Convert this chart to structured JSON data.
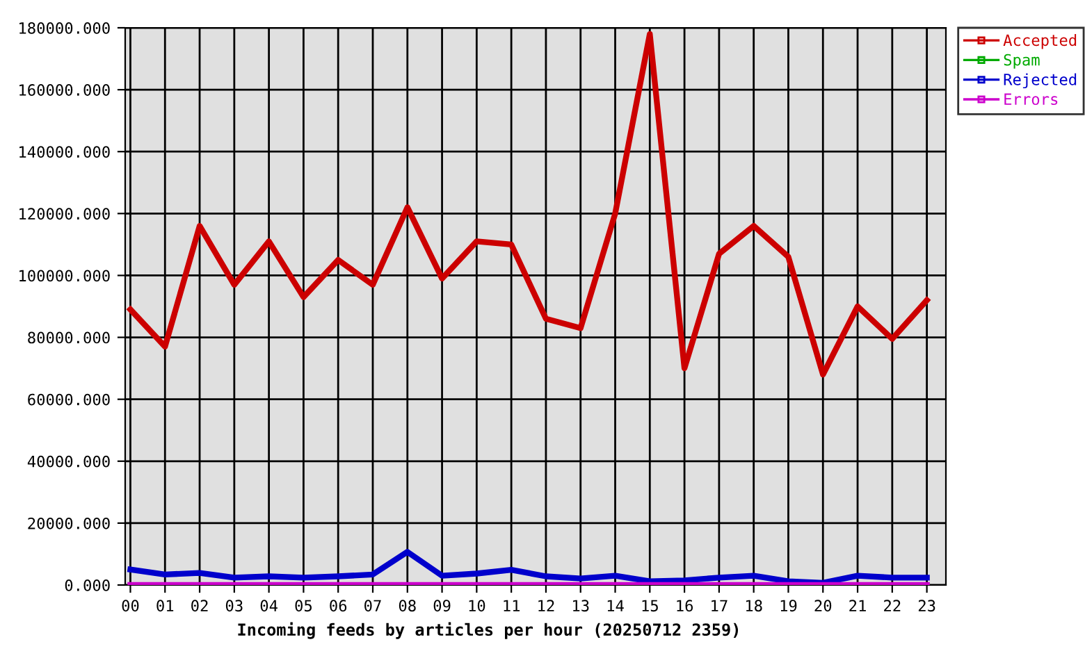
{
  "chart_data": {
    "type": "line",
    "xlabel": "Incoming feeds by articles per hour (20250712 2359)",
    "categories": [
      "00",
      "01",
      "02",
      "03",
      "04",
      "05",
      "06",
      "07",
      "08",
      "09",
      "10",
      "11",
      "12",
      "13",
      "14",
      "15",
      "16",
      "17",
      "18",
      "19",
      "20",
      "21",
      "22",
      "23"
    ],
    "series": [
      {
        "name": "Accepted",
        "color": "#cc0000",
        "values": [
          89000,
          77000,
          116000,
          97000,
          111000,
          93000,
          105000,
          97000,
          122000,
          99000,
          111000,
          110000,
          86000,
          83000,
          120000,
          178000,
          70000,
          107000,
          116000,
          106000,
          68000,
          90000,
          79500,
          92000
        ]
      },
      {
        "name": "Spam",
        "color": "#00aa00",
        "values": [
          null,
          null,
          null,
          null,
          null,
          null,
          null,
          null,
          null,
          null,
          null,
          null,
          null,
          null,
          null,
          null,
          null,
          null,
          null,
          null,
          null,
          null,
          null,
          null
        ]
      },
      {
        "name": "Rejected",
        "color": "#0000cc",
        "values": [
          5000,
          3400,
          3900,
          2400,
          2800,
          2400,
          2800,
          3400,
          10700,
          3000,
          3700,
          4900,
          2800,
          2100,
          3000,
          1200,
          1500,
          2400,
          3000,
          1200,
          700,
          3000,
          2400,
          2400
        ]
      },
      {
        "name": "Errors",
        "color": "#cc00cc",
        "values": [
          0,
          0,
          0,
          0,
          0,
          0,
          0,
          0,
          0,
          0,
          0,
          0,
          0,
          0,
          0,
          0,
          0,
          0,
          0,
          0,
          0,
          0,
          0,
          0
        ]
      }
    ],
    "ylim": [
      0,
      180000
    ],
    "yticks": [
      {
        "value": 0,
        "label": "0.000"
      },
      {
        "value": 20000,
        "label": "20000.000"
      },
      {
        "value": 40000,
        "label": "40000.000"
      },
      {
        "value": 60000,
        "label": "60000.000"
      },
      {
        "value": 80000,
        "label": "80000.000"
      },
      {
        "value": 100000,
        "label": "100000.000"
      },
      {
        "value": 120000,
        "label": "120000.000"
      },
      {
        "value": 140000,
        "label": "140000.000"
      },
      {
        "value": 160000,
        "label": "160000.000"
      },
      {
        "value": 180000,
        "label": "180000.000"
      }
    ],
    "grid": true,
    "legend": "top right",
    "line_style": "solid"
  }
}
